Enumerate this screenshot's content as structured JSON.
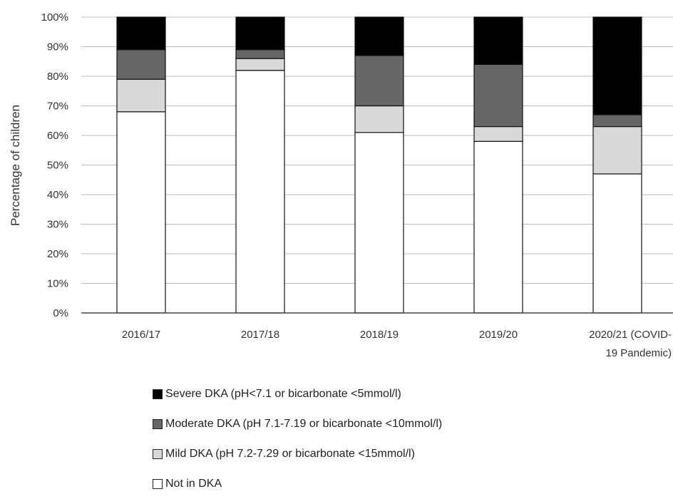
{
  "chart_data": {
    "type": "bar",
    "stacked": true,
    "categories": [
      "2016/17",
      "2017/18",
      "2018/19",
      "2019/20",
      "2020/21 (COVID-19 Pandemic)"
    ],
    "category_lines": [
      [
        "2016/17"
      ],
      [
        "2017/18"
      ],
      [
        "2018/19"
      ],
      [
        "2019/20"
      ],
      [
        "2020/21 (COVID-",
        "19 Pandemic)"
      ]
    ],
    "series": [
      {
        "name": "Not in DKA",
        "color": "#ffffff",
        "values": [
          68,
          82,
          61,
          58,
          47
        ]
      },
      {
        "name": "Mild DKA (pH 7.2-7.29 or bicarbonate <15mmol/l)",
        "color": "#d9d9d9",
        "values": [
          11,
          4,
          9,
          5,
          16
        ]
      },
      {
        "name": "Moderate DKA (pH 7.1-7.19 or bicarbonate <10mmol/l)",
        "color": "#666666",
        "values": [
          10,
          3,
          17,
          21,
          4
        ]
      },
      {
        "name": "Severe DKA (pH<7.1 or bicarbonate <5mmol/l)",
        "color": "#000000",
        "values": [
          11,
          11,
          13,
          16,
          33
        ]
      }
    ],
    "ylabel": "Percentage of children",
    "xlabel": "",
    "ylim": [
      0,
      100
    ],
    "yticks": [
      "0%",
      "10%",
      "20%",
      "30%",
      "40%",
      "50%",
      "60%",
      "70%",
      "80%",
      "90%",
      "100%"
    ],
    "grid": true,
    "legend_position": "bottom",
    "legend_order": [
      3,
      2,
      1,
      0
    ]
  }
}
